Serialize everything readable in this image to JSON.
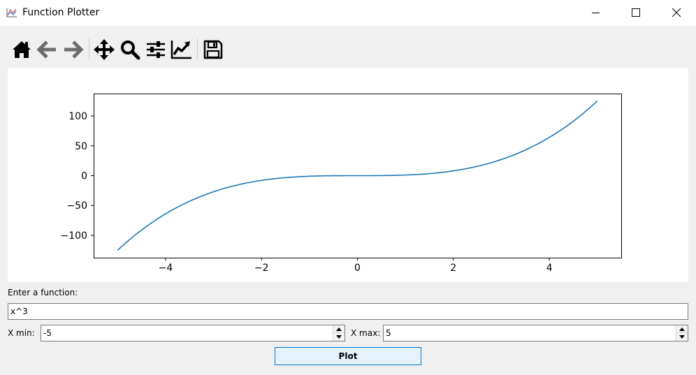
{
  "window": {
    "title": "Function Plotter",
    "controls": {
      "minimize_icon": "minimize-icon",
      "maximize_icon": "maximize-icon",
      "close_icon": "close-icon"
    }
  },
  "toolbar": {
    "tools": [
      {
        "icon": "home-icon"
      },
      {
        "icon": "back-arrow-icon"
      },
      {
        "icon": "forward-arrow-icon"
      },
      {
        "icon": "pan-icon"
      },
      {
        "icon": "zoom-icon"
      },
      {
        "icon": "configure-subplots-icon"
      },
      {
        "icon": "edit-axis-icon"
      },
      {
        "icon": "save-icon"
      }
    ]
  },
  "chart_data": {
    "type": "line",
    "function": "x^3",
    "x_range": [
      -5,
      5
    ],
    "xlim": [
      -5.5,
      5.5
    ],
    "ylim": [
      -137.5,
      137.5
    ],
    "x_ticks": [
      -4,
      -2,
      0,
      2,
      4
    ],
    "x_tick_labels": [
      "−4",
      "−2",
      "0",
      "2",
      "4"
    ],
    "y_ticks": [
      -100,
      -50,
      0,
      50,
      100
    ],
    "y_tick_labels": [
      "−100",
      "−50",
      "0",
      "50",
      "100"
    ],
    "x": [
      -5,
      -4.5,
      -4,
      -3.5,
      -3,
      -2.5,
      -2,
      -1.5,
      -1,
      -0.5,
      0,
      0.5,
      1,
      1.5,
      2,
      2.5,
      3,
      3.5,
      4,
      4.5,
      5
    ],
    "y": [
      -125,
      -91.125,
      -64,
      -42.875,
      -27,
      -15.625,
      -8,
      -3.375,
      -1,
      -0.125,
      0,
      0.125,
      1,
      3.375,
      8,
      15.625,
      27,
      42.875,
      64,
      91.125,
      125
    ],
    "series_color": "#1f77b4",
    "grid": false
  },
  "form": {
    "function_label": "Enter a function:",
    "function_value": "x^3",
    "xmin_label": "X min:",
    "xmin_value": "-5",
    "xmax_label": "X max:",
    "xmax_value": "5",
    "plot_label": "Plot"
  },
  "colors": {
    "button_border": "#0078d7",
    "button_fill": "#e5f1fb",
    "background": "#f0f0f0"
  }
}
